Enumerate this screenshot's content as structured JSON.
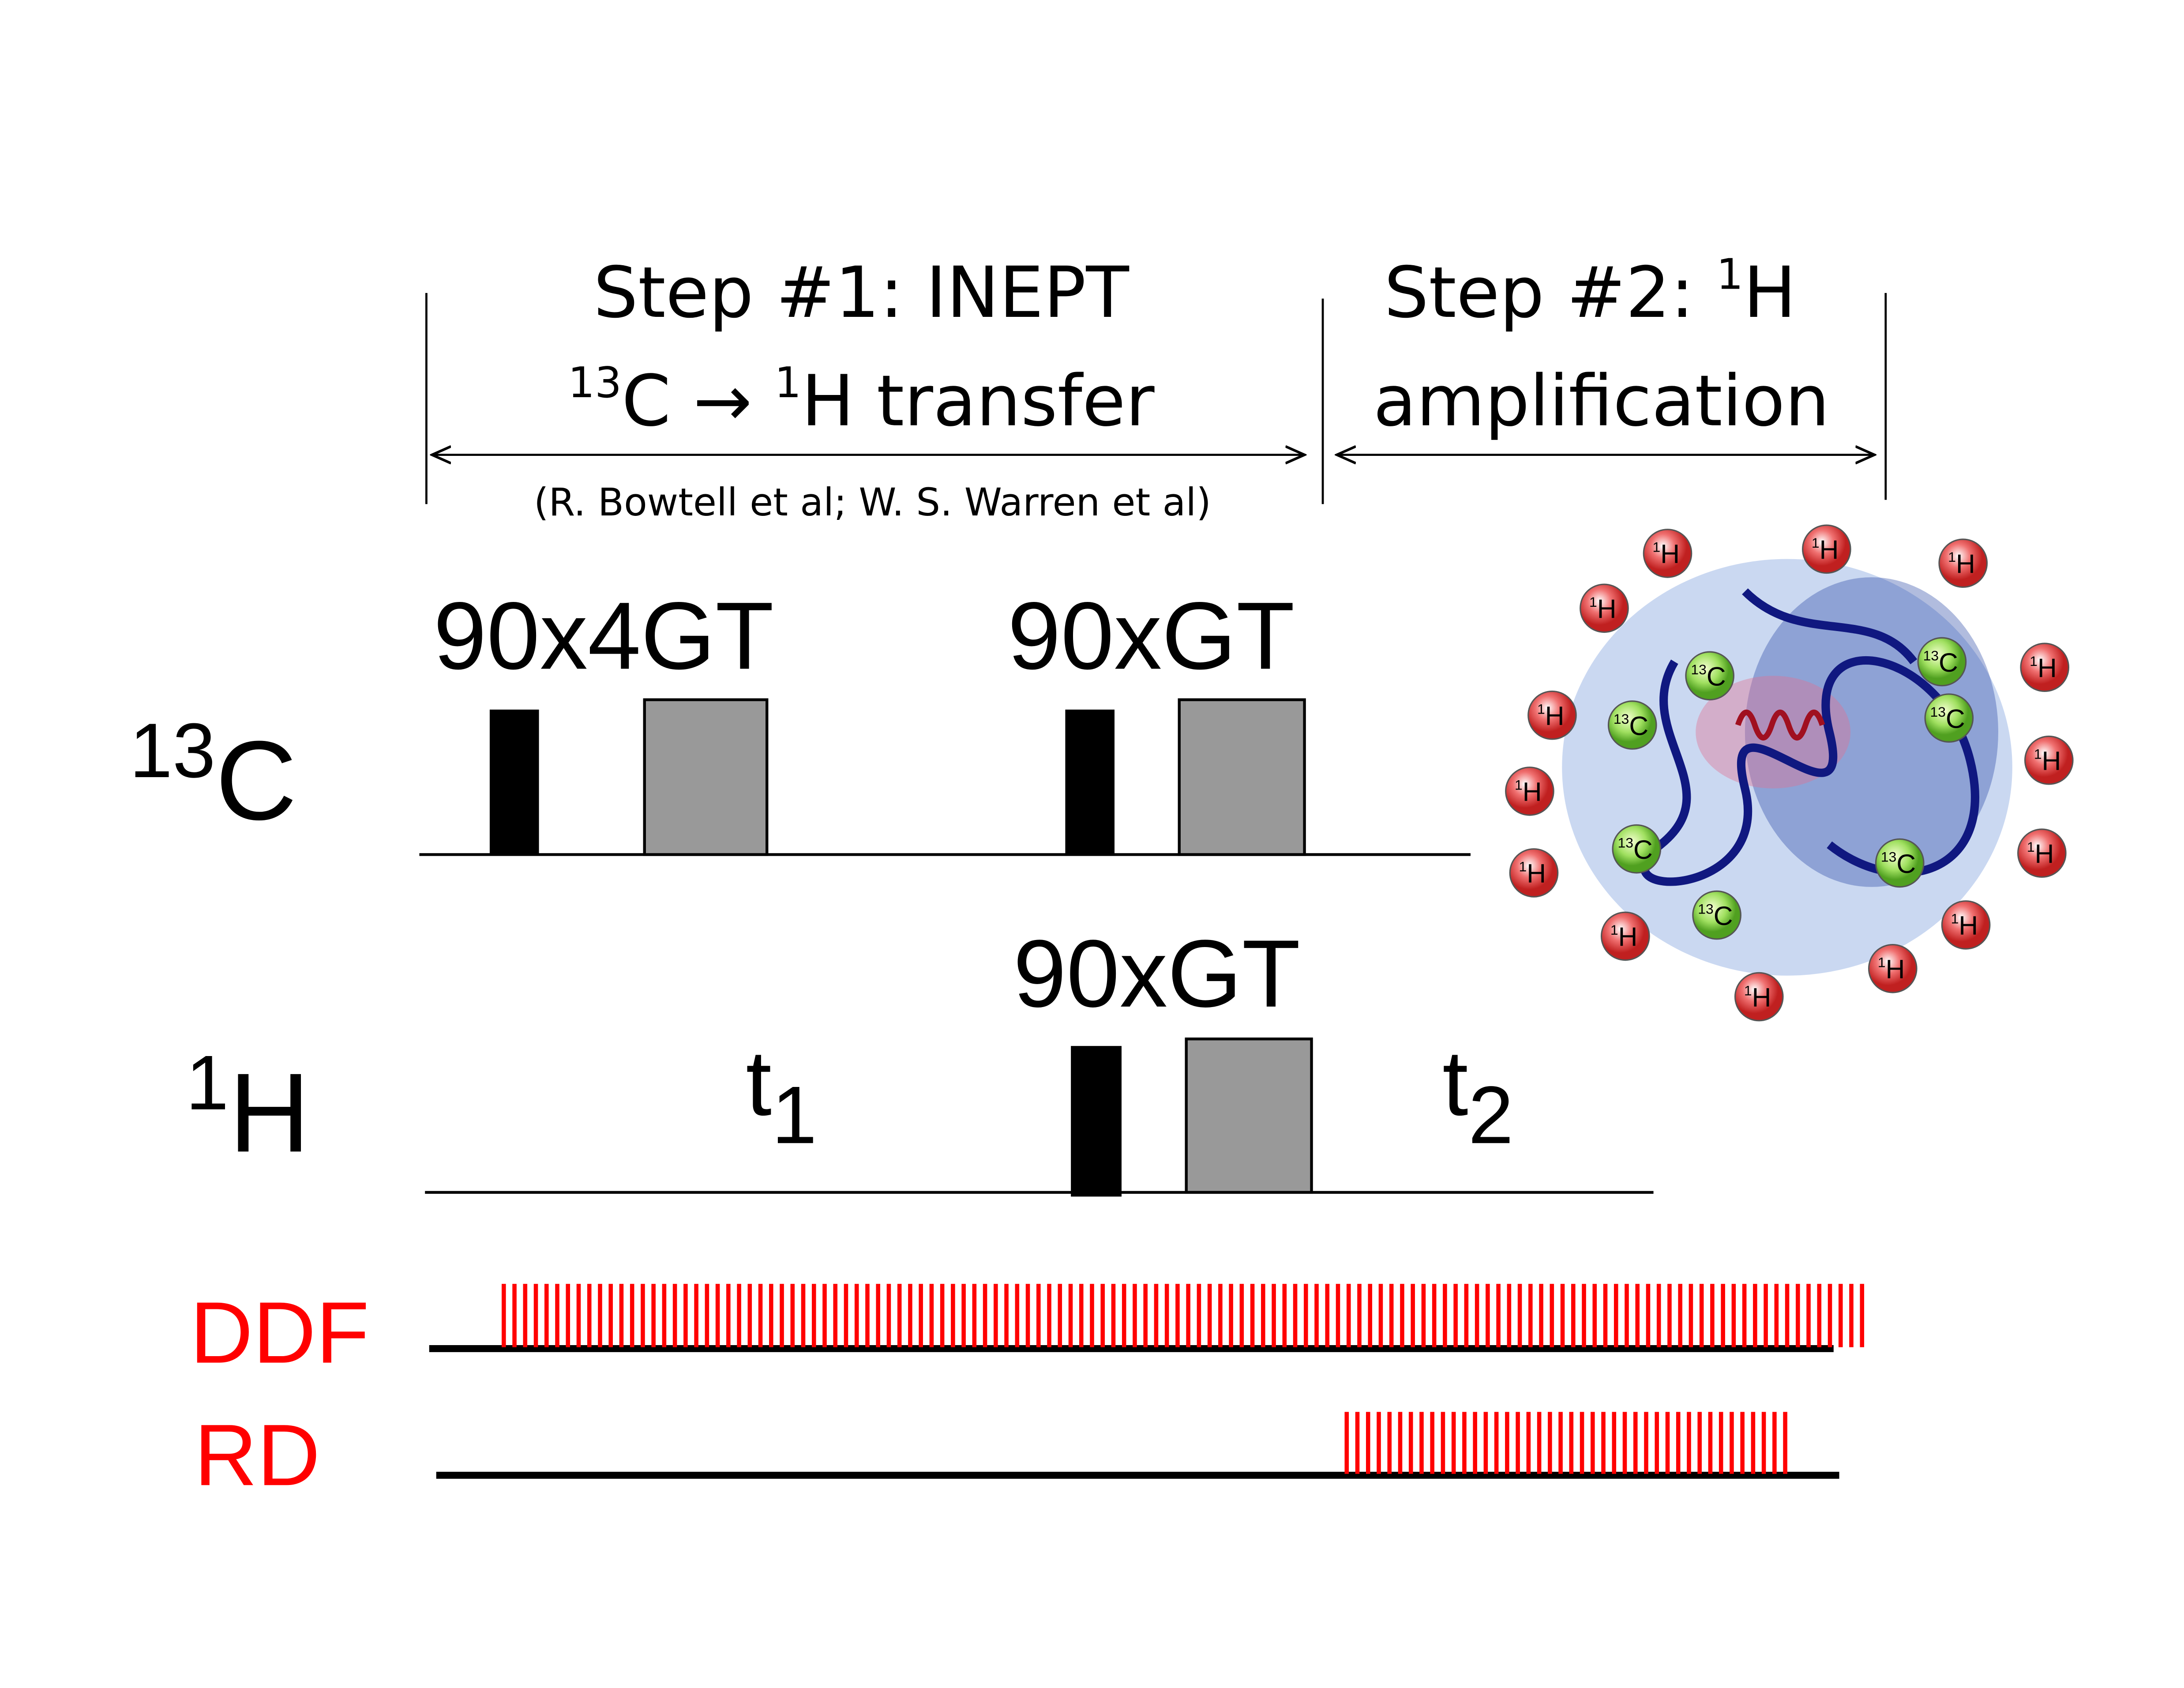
{
  "steps": [
    {
      "title": "Step #1: INEPT",
      "line2": {
        "sup1": "13",
        "text1": "C → ",
        "sup2": "1",
        "text2": "H transfer"
      },
      "reference": "(R. Bowtell et al; W. S. Warren et al)"
    },
    {
      "title": "Step #2: ",
      "title_sup": "1",
      "title_end": "H",
      "line2": "amplification"
    }
  ],
  "channels": [
    {
      "label_sup": "13",
      "label": "C",
      "pulses": [
        "90x4GT",
        "90xGT"
      ]
    },
    {
      "label_sup": "1",
      "label": "H",
      "pulses": [
        "90xGT"
      ],
      "delays": [
        {
          "text": "t",
          "sub": "1"
        },
        {
          "text": "t",
          "sub": "2"
        }
      ]
    }
  ],
  "tracks": [
    "DDF",
    "RD"
  ],
  "molecule": {
    "h_sup": "1",
    "h": "H",
    "c_sup": "13",
    "c": "C"
  }
}
